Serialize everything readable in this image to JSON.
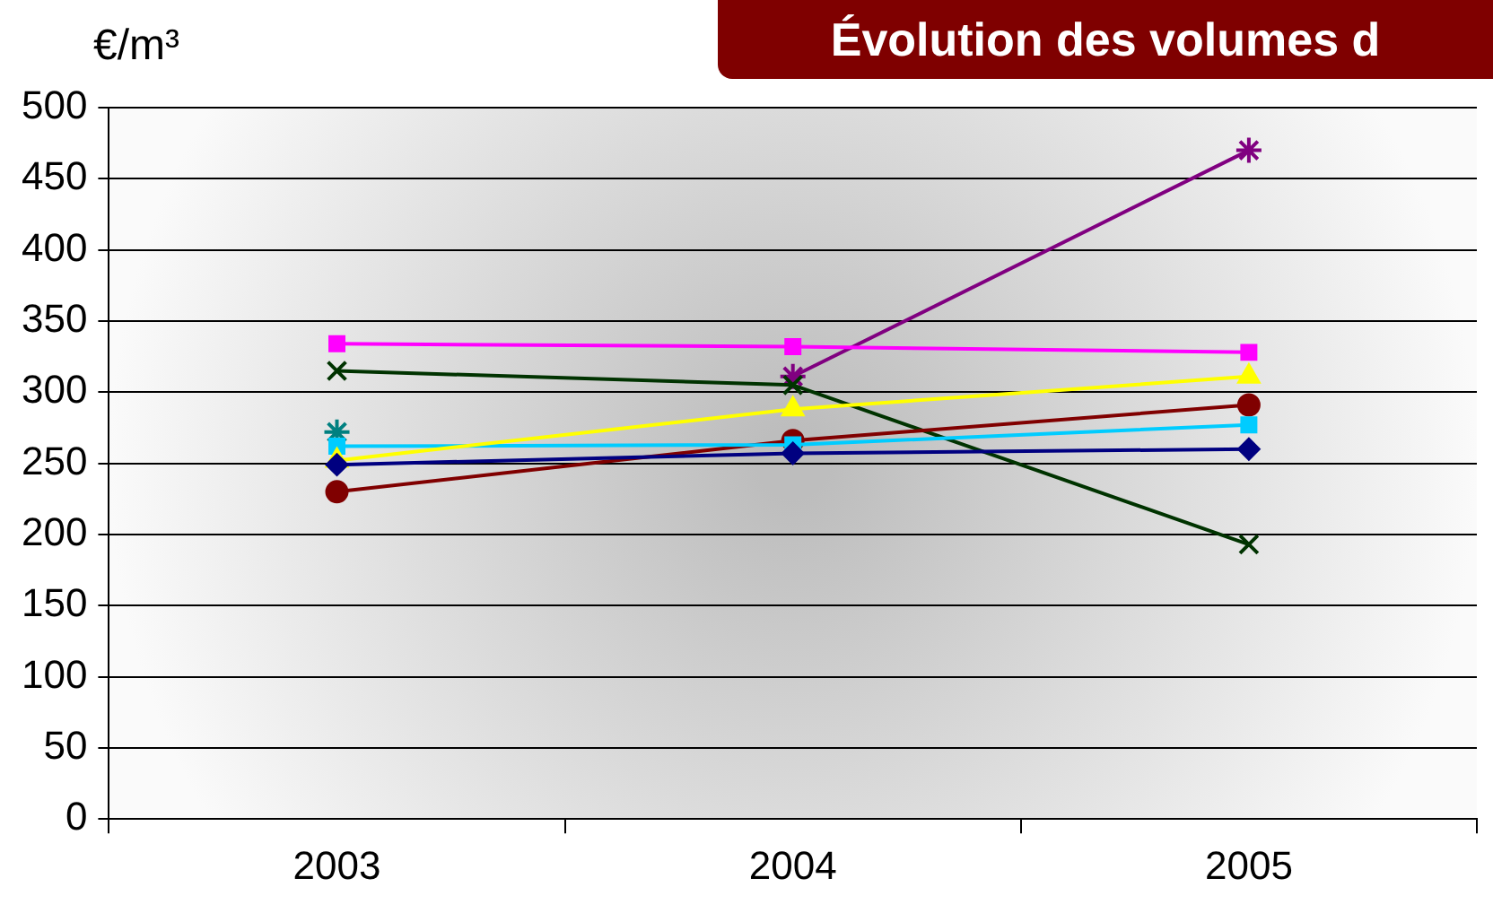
{
  "chart_data": {
    "type": "line",
    "title": "Évolution des volumes d",
    "ylabel": "€/m³",
    "categories": [
      "2003",
      "2004",
      "2005"
    ],
    "ylim": [
      0,
      500
    ],
    "yticks": [
      0,
      50,
      100,
      150,
      200,
      250,
      300,
      350,
      400,
      450,
      500
    ],
    "grid": "y",
    "legend": false,
    "series": [
      {
        "color": "#000080",
        "marker": "diamond",
        "values": [
          249,
          257,
          260
        ]
      },
      {
        "color": "#ff00ff",
        "marker": "square",
        "values": [
          334,
          332,
          328
        ]
      },
      {
        "color": "#ffff00",
        "marker": "triangle",
        "values": [
          252,
          288,
          311
        ]
      },
      {
        "color": "#00ccff",
        "marker": "square",
        "values": [
          262,
          263,
          277
        ]
      },
      {
        "color": "#800000",
        "marker": "circle",
        "values": [
          230,
          266,
          291
        ]
      },
      {
        "color": "#008080",
        "marker": "cross",
        "values": [
          272,
          null,
          null
        ]
      },
      {
        "color": "#003300",
        "marker": "x",
        "values": [
          315,
          305,
          193
        ]
      },
      {
        "color": "#800080",
        "marker": "cross",
        "values": [
          null,
          311,
          470
        ]
      }
    ]
  }
}
